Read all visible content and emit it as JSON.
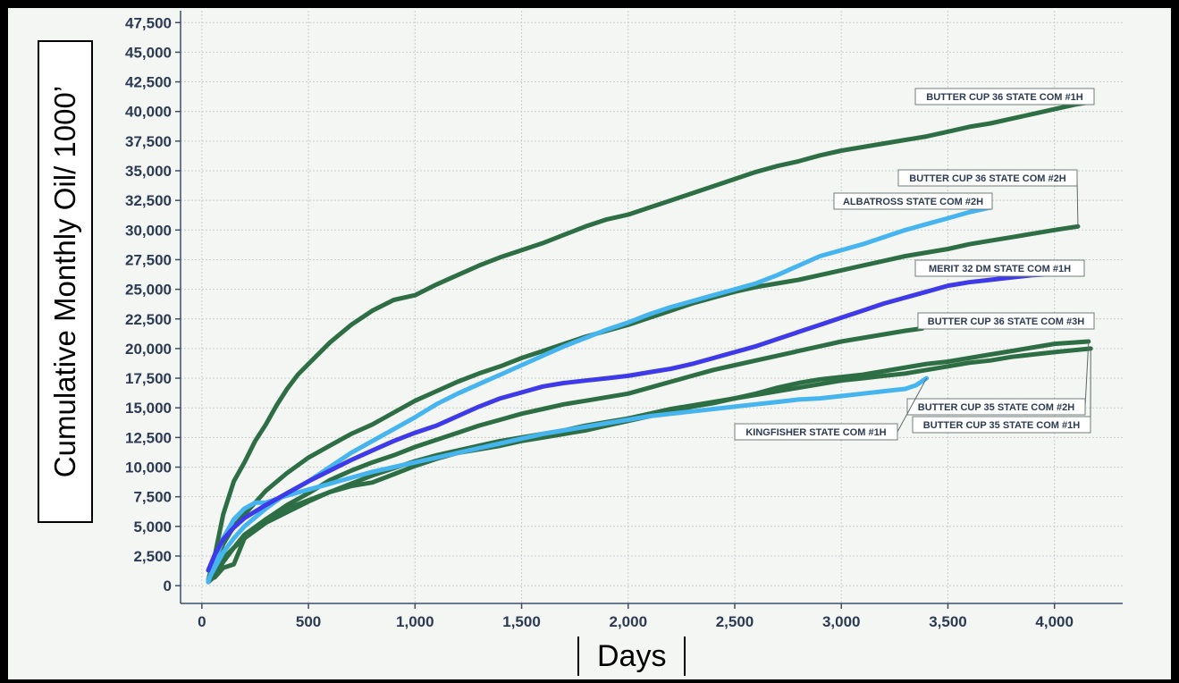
{
  "chart_data": {
    "type": "line",
    "title": "",
    "xlabel": "Days",
    "ylabel": "Cumulative Monthly Oil/ 1000’",
    "xlim": [
      -100,
      4320
    ],
    "ylim": [
      -1500,
      48500
    ],
    "x_ticks": [
      0,
      500,
      1000,
      1500,
      2000,
      2500,
      3000,
      3500,
      4000
    ],
    "x_tick_labels": [
      "0",
      "500",
      "1,000",
      "1,500",
      "2,000",
      "2,500",
      "3,000",
      "3,500",
      "4,000"
    ],
    "y_ticks": [
      0,
      2500,
      5000,
      7500,
      10000,
      12500,
      15000,
      17500,
      20000,
      22500,
      25000,
      27500,
      30000,
      32500,
      35000,
      37500,
      40000,
      42500,
      45000,
      47500
    ],
    "y_tick_labels": [
      "0",
      "2,500",
      "5,000",
      "7,500",
      "10,000",
      "12,500",
      "15,000",
      "17,500",
      "20,000",
      "22,500",
      "25,000",
      "27,500",
      "30,000",
      "32,500",
      "35,000",
      "37,500",
      "40,000",
      "42,500",
      "45,000",
      "47,500"
    ],
    "grid": true,
    "series": [
      {
        "name": "BUTTER CUP 36 STATE COM #1H",
        "color": "#2e6e44",
        "x": [
          30,
          60,
          100,
          150,
          200,
          250,
          300,
          350,
          400,
          450,
          500,
          600,
          700,
          800,
          900,
          1000,
          1100,
          1200,
          1300,
          1400,
          1500,
          1600,
          1700,
          1800,
          1900,
          2000,
          2100,
          2200,
          2300,
          2400,
          2500,
          2600,
          2700,
          2800,
          2900,
          3000,
          3100,
          3200,
          3300,
          3400,
          3500,
          3600,
          3700,
          3800,
          3900,
          4000,
          4100,
          4170
        ],
        "y": [
          500,
          2500,
          6000,
          8800,
          10400,
          12200,
          13600,
          15200,
          16600,
          17800,
          18700,
          20500,
          22000,
          23200,
          24100,
          24500,
          25400,
          26200,
          27000,
          27700,
          28300,
          28900,
          29600,
          30300,
          30900,
          31300,
          31900,
          32500,
          33100,
          33700,
          34300,
          34900,
          35400,
          35800,
          36300,
          36700,
          37000,
          37300,
          37600,
          37900,
          38300,
          38700,
          39000,
          39400,
          39800,
          40200,
          40600,
          40800
        ]
      },
      {
        "name": "BUTTER CUP 36 STATE COM #2H",
        "color": "#2e6e44",
        "x": [
          30,
          60,
          100,
          150,
          200,
          300,
          400,
          500,
          600,
          700,
          800,
          900,
          1000,
          1100,
          1200,
          1300,
          1400,
          1500,
          1600,
          1700,
          1800,
          1900,
          2000,
          2100,
          2200,
          2300,
          2400,
          2500,
          2600,
          2700,
          2800,
          2900,
          3000,
          3100,
          3200,
          3300,
          3400,
          3500,
          3600,
          3700,
          3800,
          3900,
          4000,
          4110
        ],
        "y": [
          500,
          2000,
          3500,
          5000,
          6000,
          8000,
          9500,
          10800,
          11800,
          12800,
          13600,
          14600,
          15600,
          16400,
          17200,
          17900,
          18500,
          19200,
          19800,
          20400,
          21000,
          21500,
          22000,
          22600,
          23200,
          23800,
          24300,
          24800,
          25200,
          25500,
          25800,
          26200,
          26600,
          27000,
          27400,
          27800,
          28100,
          28400,
          28800,
          29100,
          29400,
          29700,
          30000,
          30300
        ]
      },
      {
        "name": "ALBATROSS STATE COM #2H",
        "color": "#45b4ef",
        "x": [
          30,
          60,
          100,
          150,
          200,
          300,
          400,
          500,
          600,
          700,
          800,
          900,
          1000,
          1100,
          1200,
          1300,
          1400,
          1500,
          1600,
          1700,
          1800,
          1900,
          2000,
          2100,
          2200,
          2300,
          2400,
          2500,
          2600,
          2700,
          2800,
          2900,
          3000,
          3100,
          3200,
          3300,
          3400,
          3500,
          3600,
          3700
        ],
        "y": [
          500,
          1500,
          2800,
          4000,
          5000,
          6500,
          7800,
          8800,
          10000,
          11200,
          12200,
          13200,
          14200,
          15300,
          16200,
          17000,
          17800,
          18600,
          19400,
          20200,
          20900,
          21600,
          22200,
          22900,
          23500,
          24000,
          24500,
          25000,
          25500,
          26200,
          27000,
          27800,
          28300,
          28800,
          29400,
          30000,
          30500,
          31000,
          31500,
          31900
        ]
      },
      {
        "name": "MERIT 32 DM STATE COM #1H",
        "color": "#3f3ae8",
        "x": [
          30,
          60,
          100,
          150,
          200,
          300,
          400,
          500,
          600,
          700,
          800,
          900,
          1000,
          1100,
          1200,
          1300,
          1400,
          1500,
          1600,
          1700,
          1800,
          1900,
          2000,
          2100,
          2200,
          2300,
          2400,
          2500,
          2600,
          2700,
          2800,
          2900,
          3000,
          3100,
          3200,
          3300,
          3400,
          3500,
          3600,
          3700,
          3800,
          3900,
          4000,
          4120
        ],
        "y": [
          1300,
          2600,
          3900,
          4900,
          5700,
          6800,
          7800,
          8800,
          9700,
          10600,
          11400,
          12200,
          12900,
          13500,
          14300,
          15100,
          15800,
          16300,
          16800,
          17100,
          17300,
          17500,
          17700,
          18000,
          18300,
          18700,
          19200,
          19700,
          20200,
          20800,
          21400,
          22000,
          22600,
          23200,
          23800,
          24300,
          24800,
          25300,
          25600,
          25800,
          26000,
          26200,
          26300,
          26400
        ]
      },
      {
        "name": "BUTTER CUP 36 STATE COM #3H",
        "color": "#2e6e44",
        "x": [
          30,
          60,
          100,
          150,
          200,
          300,
          400,
          500,
          600,
          700,
          800,
          900,
          1000,
          1100,
          1200,
          1300,
          1400,
          1500,
          1600,
          1700,
          1800,
          1900,
          2000,
          2100,
          2200,
          2300,
          2400,
          2500,
          2600,
          2700,
          2800,
          2900,
          3000,
          3100,
          3200,
          3300,
          3380
        ],
        "y": [
          300,
          800,
          2000,
          3200,
          4300,
          5600,
          6800,
          7800,
          8900,
          9700,
          10400,
          11000,
          11700,
          12300,
          12900,
          13500,
          14000,
          14500,
          14900,
          15300,
          15600,
          15900,
          16200,
          16700,
          17200,
          17700,
          18200,
          18600,
          19000,
          19400,
          19800,
          20200,
          20600,
          20900,
          21200,
          21500,
          21700
        ]
      },
      {
        "name": "BUTTER CUP 35 STATE COM #2H",
        "color": "#2e6e44",
        "x": [
          30,
          60,
          100,
          150,
          200,
          300,
          400,
          500,
          600,
          700,
          800,
          900,
          1000,
          1100,
          1200,
          1300,
          1400,
          1500,
          1600,
          1700,
          1800,
          1900,
          2000,
          2100,
          2200,
          2300,
          2400,
          2500,
          2600,
          2700,
          2800,
          2900,
          3000,
          3100,
          3200,
          3300,
          3400,
          3500,
          3600,
          3700,
          3800,
          3900,
          4000,
          4160
        ],
        "y": [
          500,
          700,
          1500,
          1800,
          4000,
          5600,
          6500,
          7200,
          7900,
          8400,
          8700,
          9400,
          10100,
          10700,
          11200,
          11500,
          11800,
          12200,
          12500,
          12800,
          13100,
          13500,
          13900,
          14300,
          14700,
          15100,
          15400,
          15800,
          16200,
          16700,
          17100,
          17400,
          17600,
          17800,
          18100,
          18400,
          18700,
          18900,
          19200,
          19500,
          19800,
          20100,
          20400,
          20600
        ]
      },
      {
        "name": "BUTTER CUP 35 STATE COM #1H",
        "color": "#2e6e44",
        "x": [
          30,
          60,
          100,
          150,
          200,
          300,
          400,
          500,
          600,
          700,
          800,
          900,
          1000,
          1100,
          1200,
          1300,
          1400,
          1500,
          1600,
          1700,
          1800,
          1900,
          2000,
          2100,
          2200,
          2300,
          2400,
          2500,
          2600,
          2700,
          2800,
          2900,
          3000,
          3100,
          3200,
          3300,
          3400,
          3500,
          3600,
          3700,
          3800,
          3900,
          4000,
          4170
        ],
        "y": [
          500,
          1200,
          2300,
          3200,
          4000,
          5300,
          6200,
          7100,
          7900,
          8600,
          9300,
          9900,
          10500,
          11000,
          11400,
          11800,
          12200,
          12500,
          12800,
          13100,
          13500,
          13800,
          14100,
          14500,
          14900,
          15200,
          15500,
          15800,
          16100,
          16400,
          16700,
          17000,
          17300,
          17500,
          17700,
          17900,
          18200,
          18500,
          18800,
          19000,
          19300,
          19500,
          19700,
          20000
        ]
      },
      {
        "name": "KINGFISHER STATE COM #1H",
        "color": "#45b4ef",
        "x": [
          30,
          60,
          100,
          150,
          200,
          250,
          300,
          400,
          500,
          600,
          700,
          800,
          900,
          1000,
          1100,
          1200,
          1300,
          1400,
          1500,
          1600,
          1700,
          1800,
          1900,
          2000,
          2100,
          2200,
          2300,
          2400,
          2500,
          2600,
          2700,
          2800,
          2900,
          3000,
          3100,
          3200,
          3300,
          3350,
          3400
        ],
        "y": [
          300,
          2000,
          4000,
          5600,
          6500,
          7000,
          7000,
          7600,
          8100,
          8600,
          9100,
          9600,
          10000,
          10400,
          10800,
          11200,
          11600,
          12000,
          12400,
          12800,
          13100,
          13400,
          13700,
          14000,
          14300,
          14500,
          14700,
          14900,
          15100,
          15300,
          15500,
          15700,
          15800,
          16000,
          16200,
          16400,
          16600,
          16900,
          17500
        ]
      }
    ],
    "annotations": [
      {
        "text": "BUTTER CUP 36 STATE COM #1H",
        "series": 0
      },
      {
        "text": "BUTTER CUP 36 STATE COM #2H",
        "series": 1
      },
      {
        "text": "ALBATROSS STATE COM #2H",
        "series": 2
      },
      {
        "text": "MERIT 32 DM STATE COM #1H",
        "series": 3
      },
      {
        "text": "BUTTER CUP 36 STATE COM #3H",
        "series": 4
      },
      {
        "text": "BUTTER CUP 35 STATE COM #2H",
        "series": 5
      },
      {
        "text": "BUTTER CUP 35 STATE COM #1H",
        "series": 6
      },
      {
        "text": "KINGFISHER STATE COM #1H",
        "series": 7
      }
    ]
  }
}
